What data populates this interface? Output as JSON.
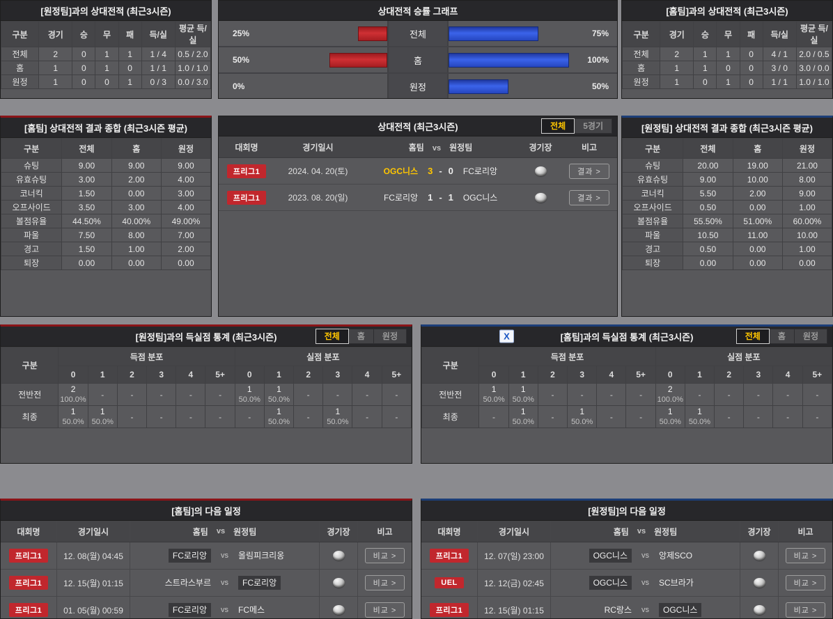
{
  "colors": {
    "league_badge": "#c1272d",
    "winner_highlight": "#ffc600",
    "tab_active_text": "#ffc600",
    "bar_left_red": "#bf2328",
    "bar_right_blue": "#2b50cc",
    "home_section_accent": "#8a1418",
    "away_section_accent": "#1c3e78",
    "excel_icon_blue": "#1a56c4"
  },
  "record_away": {
    "title": "[원정팀]과의 상대전적 (최근3시즌)",
    "headers": [
      "구분",
      "경기",
      "승",
      "무",
      "패",
      "득/실",
      "평균 득/실"
    ],
    "rows": [
      {
        "label": "전체",
        "cells": [
          "2",
          "0",
          "1",
          "1",
          "1 / 4",
          "0.5 / 2.0"
        ]
      },
      {
        "label": "홈",
        "cells": [
          "1",
          "0",
          "1",
          "0",
          "1 / 1",
          "1.0 / 1.0"
        ]
      },
      {
        "label": "원정",
        "cells": [
          "1",
          "0",
          "0",
          "1",
          "0 / 3",
          "0.0 / 3.0"
        ]
      }
    ]
  },
  "record_home": {
    "title": "[홈팀]과의 상대전적 (최근3시즌)",
    "headers": [
      "구분",
      "경기",
      "승",
      "무",
      "패",
      "득/실",
      "평균 득/실"
    ],
    "rows": [
      {
        "label": "전체",
        "cells": [
          "2",
          "1",
          "1",
          "0",
          "4 / 1",
          "2.0 / 0.5"
        ]
      },
      {
        "label": "홈",
        "cells": [
          "1",
          "1",
          "0",
          "0",
          "3 / 0",
          "3.0 / 0.0"
        ]
      },
      {
        "label": "원정",
        "cells": [
          "1",
          "0",
          "1",
          "0",
          "1 / 1",
          "1.0 / 1.0"
        ]
      }
    ]
  },
  "winrate_chart": {
    "title": "상대전적 승률 그래프",
    "chart_data": {
      "type": "bar",
      "orientation": "horizontal-diverging",
      "categories": [
        "전체",
        "홈",
        "원정"
      ],
      "series": [
        {
          "side": "left",
          "color": "#bf2328",
          "values": [
            25,
            50,
            0
          ],
          "labels": [
            "25%",
            "50%",
            "0%"
          ]
        },
        {
          "side": "right",
          "color": "#2b50cc",
          "values": [
            75,
            100,
            50
          ],
          "labels": [
            "75%",
            "100%",
            "50%"
          ]
        }
      ],
      "xlim": [
        0,
        100
      ],
      "legend": false,
      "grid": false
    }
  },
  "summary_home": {
    "title": "[홈팀] 상대전적 결과 종합 (최근3시즌 평균)",
    "headers": [
      "구분",
      "전체",
      "홈",
      "원정"
    ],
    "rows": [
      {
        "label": "슈팅",
        "cells": [
          "9.00",
          "9.00",
          "9.00"
        ]
      },
      {
        "label": "유효슈팅",
        "cells": [
          "3.00",
          "2.00",
          "4.00"
        ]
      },
      {
        "label": "코너킥",
        "cells": [
          "1.50",
          "0.00",
          "3.00"
        ]
      },
      {
        "label": "오프사이드",
        "cells": [
          "3.50",
          "3.00",
          "4.00"
        ]
      },
      {
        "label": "볼점유율",
        "cells": [
          "44.50%",
          "40.00%",
          "49.00%"
        ]
      },
      {
        "label": "파울",
        "cells": [
          "7.50",
          "8.00",
          "7.00"
        ]
      },
      {
        "label": "경고",
        "cells": [
          "1.50",
          "1.00",
          "2.00"
        ]
      },
      {
        "label": "퇴장",
        "cells": [
          "0.00",
          "0.00",
          "0.00"
        ]
      }
    ]
  },
  "summary_away": {
    "title": "[원정팀] 상대전적 결과 종합 (최근3시즌 평균)",
    "headers": [
      "구분",
      "전체",
      "홈",
      "원정"
    ],
    "rows": [
      {
        "label": "슈팅",
        "cells": [
          "20.00",
          "19.00",
          "21.00"
        ]
      },
      {
        "label": "유효슈팅",
        "cells": [
          "9.00",
          "10.00",
          "8.00"
        ]
      },
      {
        "label": "코너킥",
        "cells": [
          "5.50",
          "2.00",
          "9.00"
        ]
      },
      {
        "label": "오프사이드",
        "cells": [
          "0.50",
          "0.00",
          "1.00"
        ]
      },
      {
        "label": "볼점유율",
        "cells": [
          "55.50%",
          "51.00%",
          "60.00%"
        ]
      },
      {
        "label": "파울",
        "cells": [
          "10.50",
          "11.00",
          "10.00"
        ]
      },
      {
        "label": "경고",
        "cells": [
          "0.50",
          "0.00",
          "1.00"
        ]
      },
      {
        "label": "퇴장",
        "cells": [
          "0.00",
          "0.00",
          "0.00"
        ]
      }
    ]
  },
  "matches": {
    "title": "상대전적 (최근3시즌)",
    "tabs": [
      {
        "label": "전체",
        "active": true
      },
      {
        "label": "5경기",
        "active": false
      }
    ],
    "headers": {
      "league": "대회명",
      "datetime": "경기일시",
      "home": "홈팀",
      "vs": "vs",
      "away": "원정팀",
      "stadium": "경기장",
      "note": "비고"
    },
    "button_label": "결과 >",
    "rows": [
      {
        "league": "프리그1",
        "datetime": "2024. 04. 20(토)",
        "home": "OGC니스",
        "score_home": "3",
        "score_away": "0",
        "away": "FC로리앙",
        "winner": "home"
      },
      {
        "league": "프리그1",
        "datetime": "2023. 08. 20(일)",
        "home": "FC로리앙",
        "score_home": "1",
        "score_away": "1",
        "away": "OGC니스",
        "winner": "none"
      }
    ]
  },
  "goals_away": {
    "title": "[원정팀]과의 득실점 통계 (최근3시즌)",
    "tabs": [
      {
        "label": "전체",
        "active": true
      },
      {
        "label": "홈",
        "active": false
      },
      {
        "label": "원정",
        "active": false
      }
    ],
    "corner_label": "구분",
    "group_headers": [
      "득점 분포",
      "실점 분포"
    ],
    "score_cols": [
      "0",
      "1",
      "2",
      "3",
      "4",
      "5+"
    ],
    "empty_cell": "-",
    "rows": [
      {
        "label": "전반전",
        "scored": [
          {
            "n": "2",
            "p": "100.0%"
          },
          null,
          null,
          null,
          null,
          null
        ],
        "conceded": [
          {
            "n": "1",
            "p": "50.0%"
          },
          {
            "n": "1",
            "p": "50.0%"
          },
          null,
          null,
          null,
          null
        ]
      },
      {
        "label": "최종",
        "scored": [
          {
            "n": "1",
            "p": "50.0%"
          },
          {
            "n": "1",
            "p": "50.0%"
          },
          null,
          null,
          null,
          null
        ],
        "conceded": [
          null,
          {
            "n": "1",
            "p": "50.0%"
          },
          null,
          {
            "n": "1",
            "p": "50.0%"
          },
          null,
          null
        ]
      }
    ]
  },
  "goals_home": {
    "title": "[홈팀]과의 득실점 통계 (최근3시즌)",
    "excel_icon_label": "X",
    "tabs": [
      {
        "label": "전체",
        "active": true
      },
      {
        "label": "홈",
        "active": false
      },
      {
        "label": "원정",
        "active": false
      }
    ],
    "corner_label": "구분",
    "group_headers": [
      "득점 분포",
      "실점 분포"
    ],
    "score_cols": [
      "0",
      "1",
      "2",
      "3",
      "4",
      "5+"
    ],
    "empty_cell": "-",
    "rows": [
      {
        "label": "전반전",
        "scored": [
          {
            "n": "1",
            "p": "50.0%"
          },
          {
            "n": "1",
            "p": "50.0%"
          },
          null,
          null,
          null,
          null
        ],
        "conceded": [
          {
            "n": "2",
            "p": "100.0%"
          },
          null,
          null,
          null,
          null,
          null
        ]
      },
      {
        "label": "최종",
        "scored": [
          null,
          {
            "n": "1",
            "p": "50.0%"
          },
          null,
          {
            "n": "1",
            "p": "50.0%"
          },
          null,
          null
        ],
        "conceded": [
          {
            "n": "1",
            "p": "50.0%"
          },
          {
            "n": "1",
            "p": "50.0%"
          },
          null,
          null,
          null,
          null
        ]
      }
    ]
  },
  "schedule_home": {
    "title": "[홈팀]의 다음 일정",
    "headers": {
      "league": "대회명",
      "datetime": "경기일시",
      "home": "홈팀",
      "vs": "vs",
      "away": "원정팀",
      "stadium": "경기장",
      "note": "비고"
    },
    "button_label": "비교 >",
    "rows": [
      {
        "league": "프리그1",
        "datetime": "12. 08(월) 04:45",
        "home": "FC로리앙",
        "away": "올림피크리옹",
        "subject": "home"
      },
      {
        "league": "프리그1",
        "datetime": "12. 15(월) 01:15",
        "home": "스트라스부르",
        "away": "FC로리앙",
        "subject": "away"
      },
      {
        "league": "프리그1",
        "datetime": "01. 05(월) 00:59",
        "home": "FC로리앙",
        "away": "FC메스",
        "subject": "home"
      }
    ]
  },
  "schedule_away": {
    "title": "[원정팀]의 다음 일정",
    "headers": {
      "league": "대회명",
      "datetime": "경기일시",
      "home": "홈팀",
      "vs": "vs",
      "away": "원정팀",
      "stadium": "경기장",
      "note": "비고"
    },
    "button_label": "비교 >",
    "rows": [
      {
        "league": "프리그1",
        "datetime": "12. 07(일) 23:00",
        "home": "OGC니스",
        "away": "앙제SCO",
        "subject": "home"
      },
      {
        "league": "UEL",
        "datetime": "12. 12(금) 02:45",
        "home": "OGC니스",
        "away": "SC브라가",
        "subject": "home"
      },
      {
        "league": "프리그1",
        "datetime": "12. 15(월) 01:15",
        "home": "RC랑스",
        "away": "OGC니스",
        "subject": "away"
      }
    ]
  }
}
